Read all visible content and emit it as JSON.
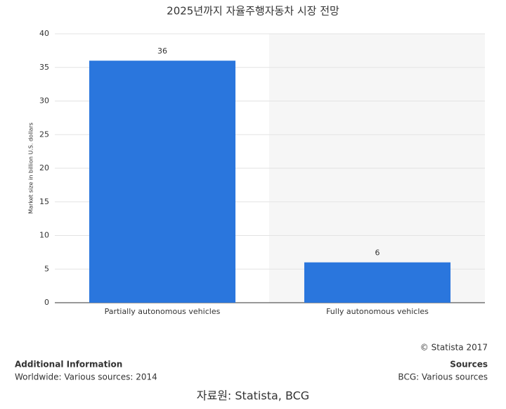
{
  "chart_data": {
    "type": "bar",
    "title": "2025년까지 자율주행자동차 시장 전망",
    "y_label": "Market size in billion U.S. dollars",
    "categories": [
      "Partially autonomous vehicles",
      "Fully autonomous vehicles"
    ],
    "values": [
      36,
      6
    ],
    "color": "#2a76dd",
    "ylim": [
      0,
      40
    ],
    "yticks": [
      0,
      5,
      10,
      15,
      20,
      25,
      30,
      35,
      40
    ],
    "grid": true
  },
  "footer": {
    "copyright": "© Statista 2017",
    "additional_title": "Additional Information",
    "additional_text": "Worldwide: Various sources: 2014",
    "sources_title": "Sources",
    "sources_text": "BCG: Various sources",
    "caption": "자료원: Statista, BCG"
  }
}
